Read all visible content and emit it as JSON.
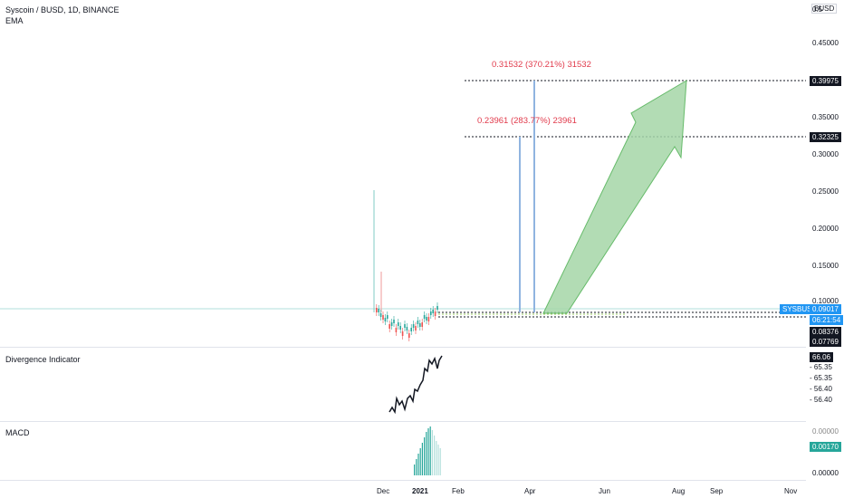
{
  "header": {
    "symbol_line": "Syscoin / BUSD, 1D, BINANCE",
    "indicator": "EMA"
  },
  "currency_button": "BUSD",
  "price_axis": {
    "top_partial": "0.5",
    "labels": [
      "0.45000",
      "0.35000",
      "0.30000",
      "0.25000",
      "0.20000",
      "0.15000",
      "0.10000"
    ]
  },
  "price_badges": {
    "target_high": "0.39975",
    "target_mid": "0.32325",
    "symbol": "SYSBUSD",
    "last_price": "0.09017",
    "countdown": "06:21:54",
    "level_1": "0.08376",
    "level_2": "0.07769"
  },
  "annotations": {
    "upper_range": "0.31532 (370.21%) 31532",
    "lower_range": "0.23961 (283.77%) 23961"
  },
  "divergence_pane": {
    "label": "Divergence Indicator",
    "current": "66.06",
    "levels": [
      "65.35",
      "65.35",
      "56.40",
      "56.40"
    ]
  },
  "macd_pane": {
    "label": "MACD",
    "current": "0.00170",
    "zero": "0.00000",
    "partial_top": "0.00000"
  },
  "time_axis": {
    "labels": [
      "Dec",
      "2021",
      "Feb",
      "Apr",
      "Jun",
      "Aug",
      "Sep",
      "Nov"
    ]
  },
  "colors": {
    "up_candle": "#26a69a",
    "down_candle": "#ef5350",
    "arrow_fill": "#a5d6a7",
    "arrow_stroke": "#66bb6a",
    "range_bar": "#90b4e0",
    "annotation": "#e13a4b",
    "symbol_badge": "#2196f3",
    "macd_badge": "#26a69a",
    "dark_badge": "#131722"
  }
}
